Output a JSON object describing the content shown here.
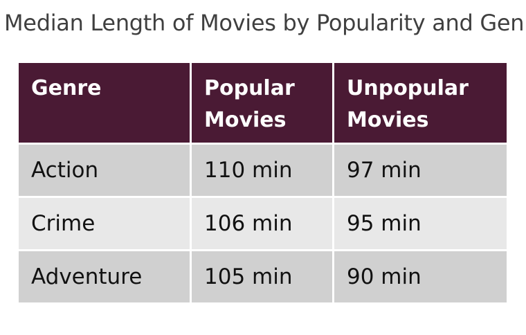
{
  "title": "Median Length of Movies by Popularity and Genre",
  "colors": {
    "header_bg": "#4a1a34",
    "header_text": "#ffffff",
    "row_odd": "#d0d0d0",
    "row_even": "#e8e8e8"
  },
  "chart_data": {
    "type": "table",
    "title": "Median Length of Movies by Popularity and Genre",
    "columns": [
      "Genre",
      "Popular Movies",
      "Unpopular Movies"
    ],
    "rows": [
      [
        "Action",
        "110 min",
        "97 min"
      ],
      [
        "Crime",
        "106 min",
        "95 min"
      ],
      [
        "Adventure",
        "105 min",
        "90 min"
      ]
    ]
  }
}
